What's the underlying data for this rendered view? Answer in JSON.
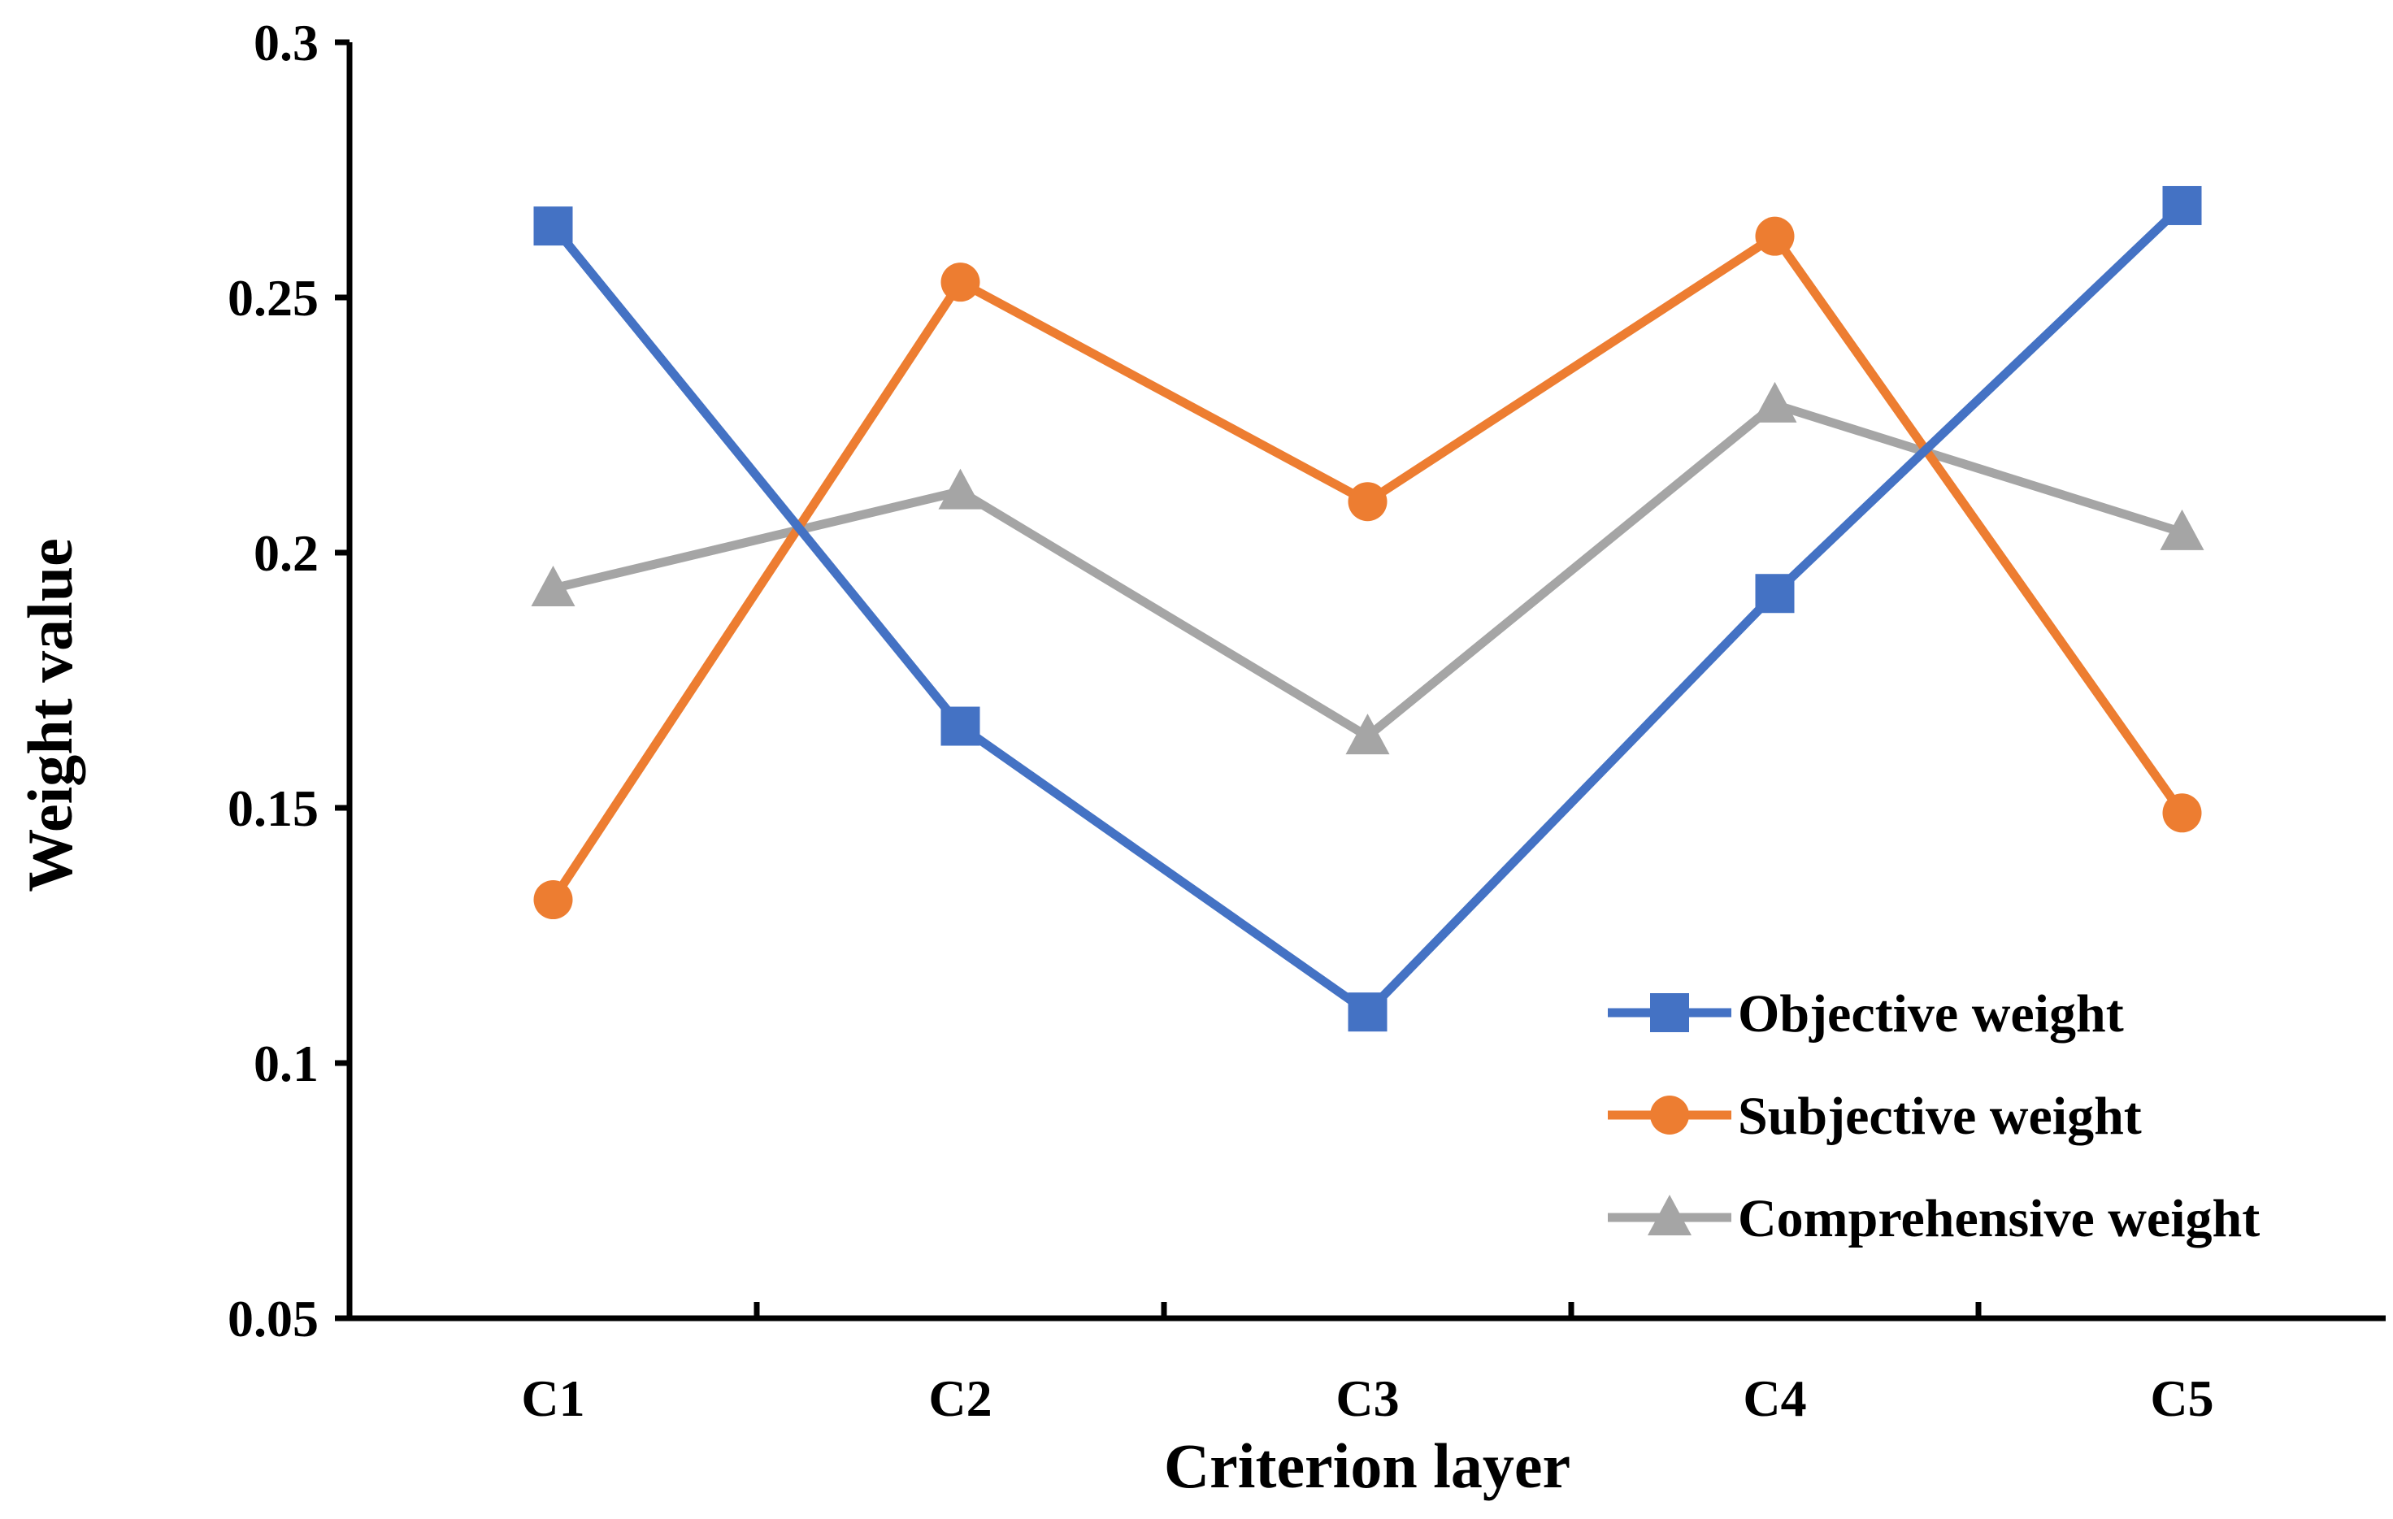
{
  "chart_data": {
    "type": "line",
    "title": "",
    "xlabel": "Criterion layer",
    "ylabel": "Weight value",
    "categories": [
      "C1",
      "C2",
      "C3",
      "C4",
      "C5"
    ],
    "ylim": [
      0.05,
      0.3
    ],
    "yticks": [
      0.05,
      0.1,
      0.15,
      0.2,
      0.25,
      0.3
    ],
    "ytick_labels": [
      "0.05",
      "0.1",
      "0.15",
      "0.2",
      "0.25",
      "0.3"
    ],
    "grid": false,
    "legend_position": "bottom-right",
    "series": [
      {
        "name": "Objective weight",
        "values": [
          0.264,
          0.166,
          0.11,
          0.192,
          0.268
        ],
        "color": "#4472C4",
        "marker": "square"
      },
      {
        "name": "Subjective weight",
        "values": [
          0.132,
          0.253,
          0.21,
          0.262,
          0.149
        ],
        "color": "#ED7D31",
        "marker": "circle"
      },
      {
        "name": "Comprehensive weight",
        "values": [
          0.193,
          0.212,
          0.164,
          0.229,
          0.204
        ],
        "color": "#A5A5A5",
        "marker": "triangle"
      }
    ]
  }
}
